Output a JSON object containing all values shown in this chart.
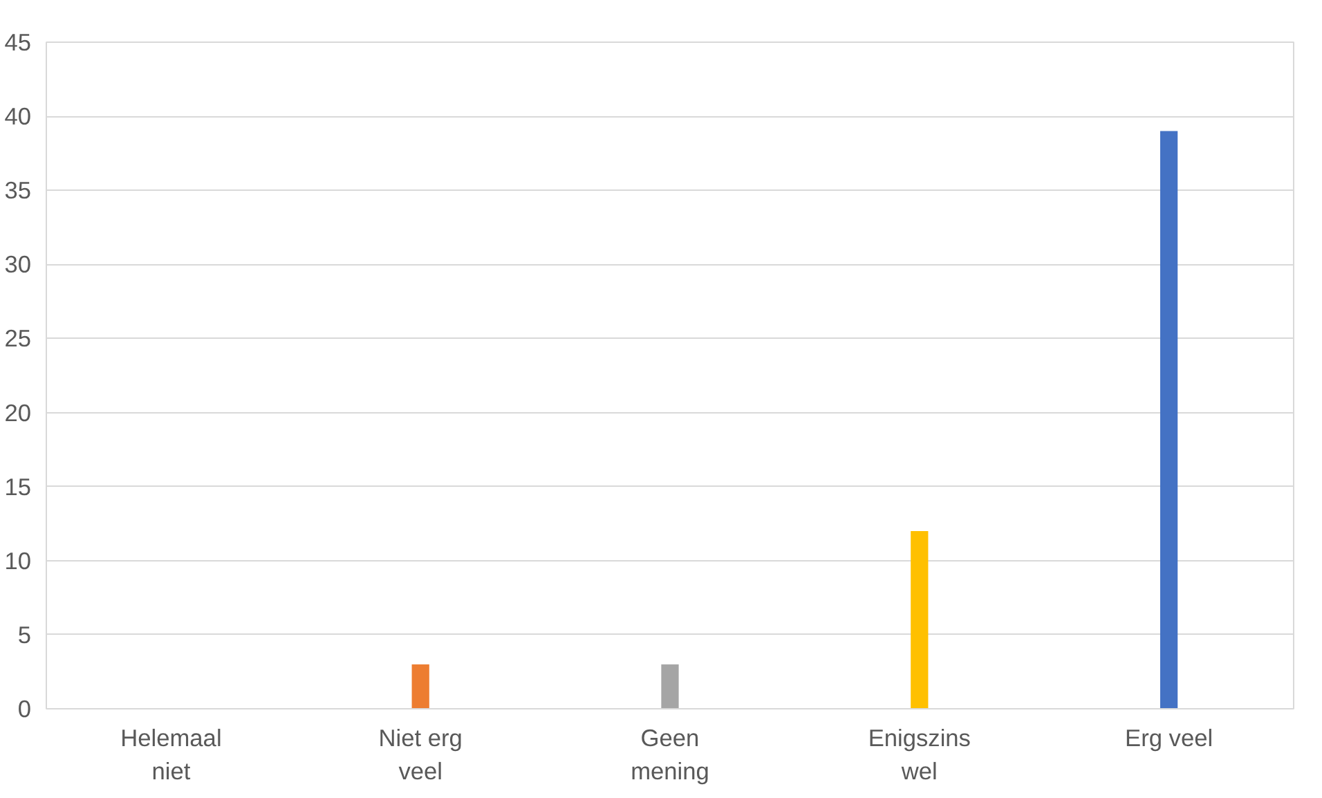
{
  "chart_data": {
    "type": "bar",
    "categories": [
      "Helemaal niet",
      "Niet erg veel",
      "Geen mening",
      "Enigszins wel",
      "Erg veel"
    ],
    "values": [
      0,
      3,
      3,
      12,
      39
    ],
    "colors": [
      "#4472c4",
      "#ed7d31",
      "#a5a5a5",
      "#ffc000",
      "#4472c4"
    ],
    "ylim": [
      0,
      45
    ],
    "yticks": [
      0,
      5,
      10,
      15,
      20,
      25,
      30,
      35,
      40,
      45
    ],
    "grid": "y"
  }
}
